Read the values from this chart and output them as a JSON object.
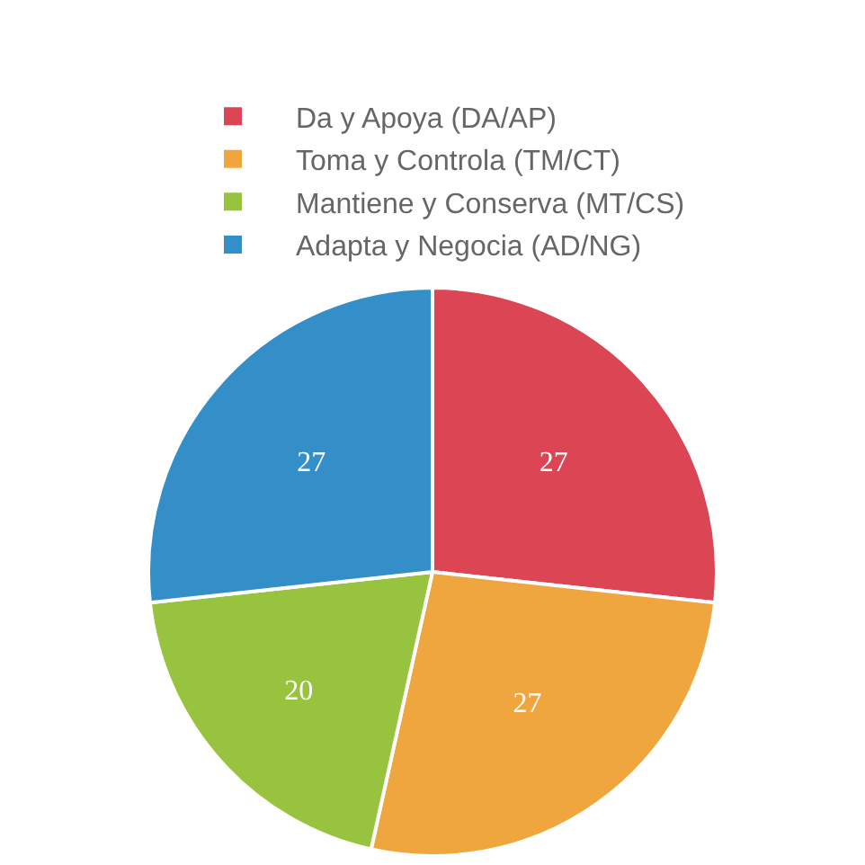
{
  "chart_data": {
    "type": "pie",
    "categories": [
      "Da y Apoya (DA/AP)",
      "Toma y Controla (TM/CT)",
      "Mantiene y Conserva (MT/CS)",
      "Adapta y Negocia (AD/NG)"
    ],
    "values": [
      27,
      27,
      20,
      27
    ],
    "colors": [
      "#dc4654",
      "#efa63e",
      "#97c33f",
      "#348ec7"
    ],
    "data_labels": true,
    "legend": "top"
  }
}
